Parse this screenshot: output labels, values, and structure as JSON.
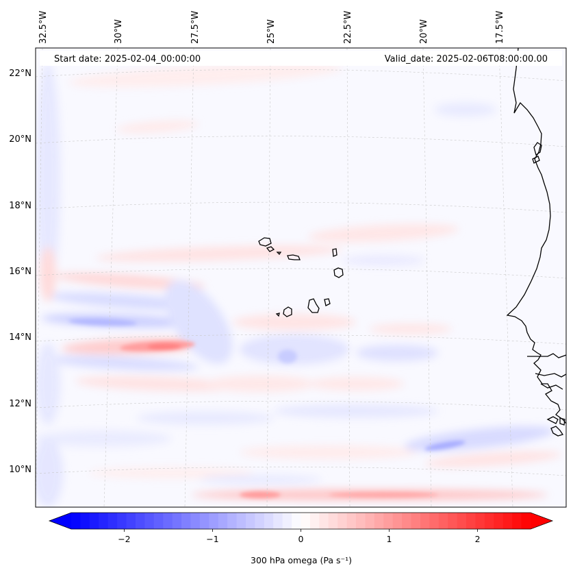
{
  "map": {
    "start_date": "Start date: 2025-02-04_00:00:00",
    "valid_date": "Valid_date: 2025-02-06T08:00:00.00",
    "lon_labels": [
      "32.5°W",
      "30°W",
      "27.5°W",
      "25°W",
      "22.5°W",
      "20°W",
      "17.5°W"
    ],
    "lat_labels": [
      "22°N",
      "20°N",
      "18°N",
      "16°N",
      "14°N",
      "12°N",
      "10°N"
    ],
    "region": "Eastern tropical Atlantic with Cape Verde islands and West African coast",
    "field": "300 hPa vertical velocity (omega)"
  },
  "colorbar": {
    "label": "300 hPa omega (Pa s⁻¹)",
    "ticks": [
      "−2",
      "−1",
      "0",
      "1",
      "2"
    ],
    "tick_values": [
      -2,
      -1,
      0,
      1,
      2
    ],
    "range": [
      -2.6,
      2.6
    ],
    "min_color": "#0000ff",
    "mid_color": "#ffffff",
    "max_color": "#ff0000",
    "extend": "both"
  }
}
